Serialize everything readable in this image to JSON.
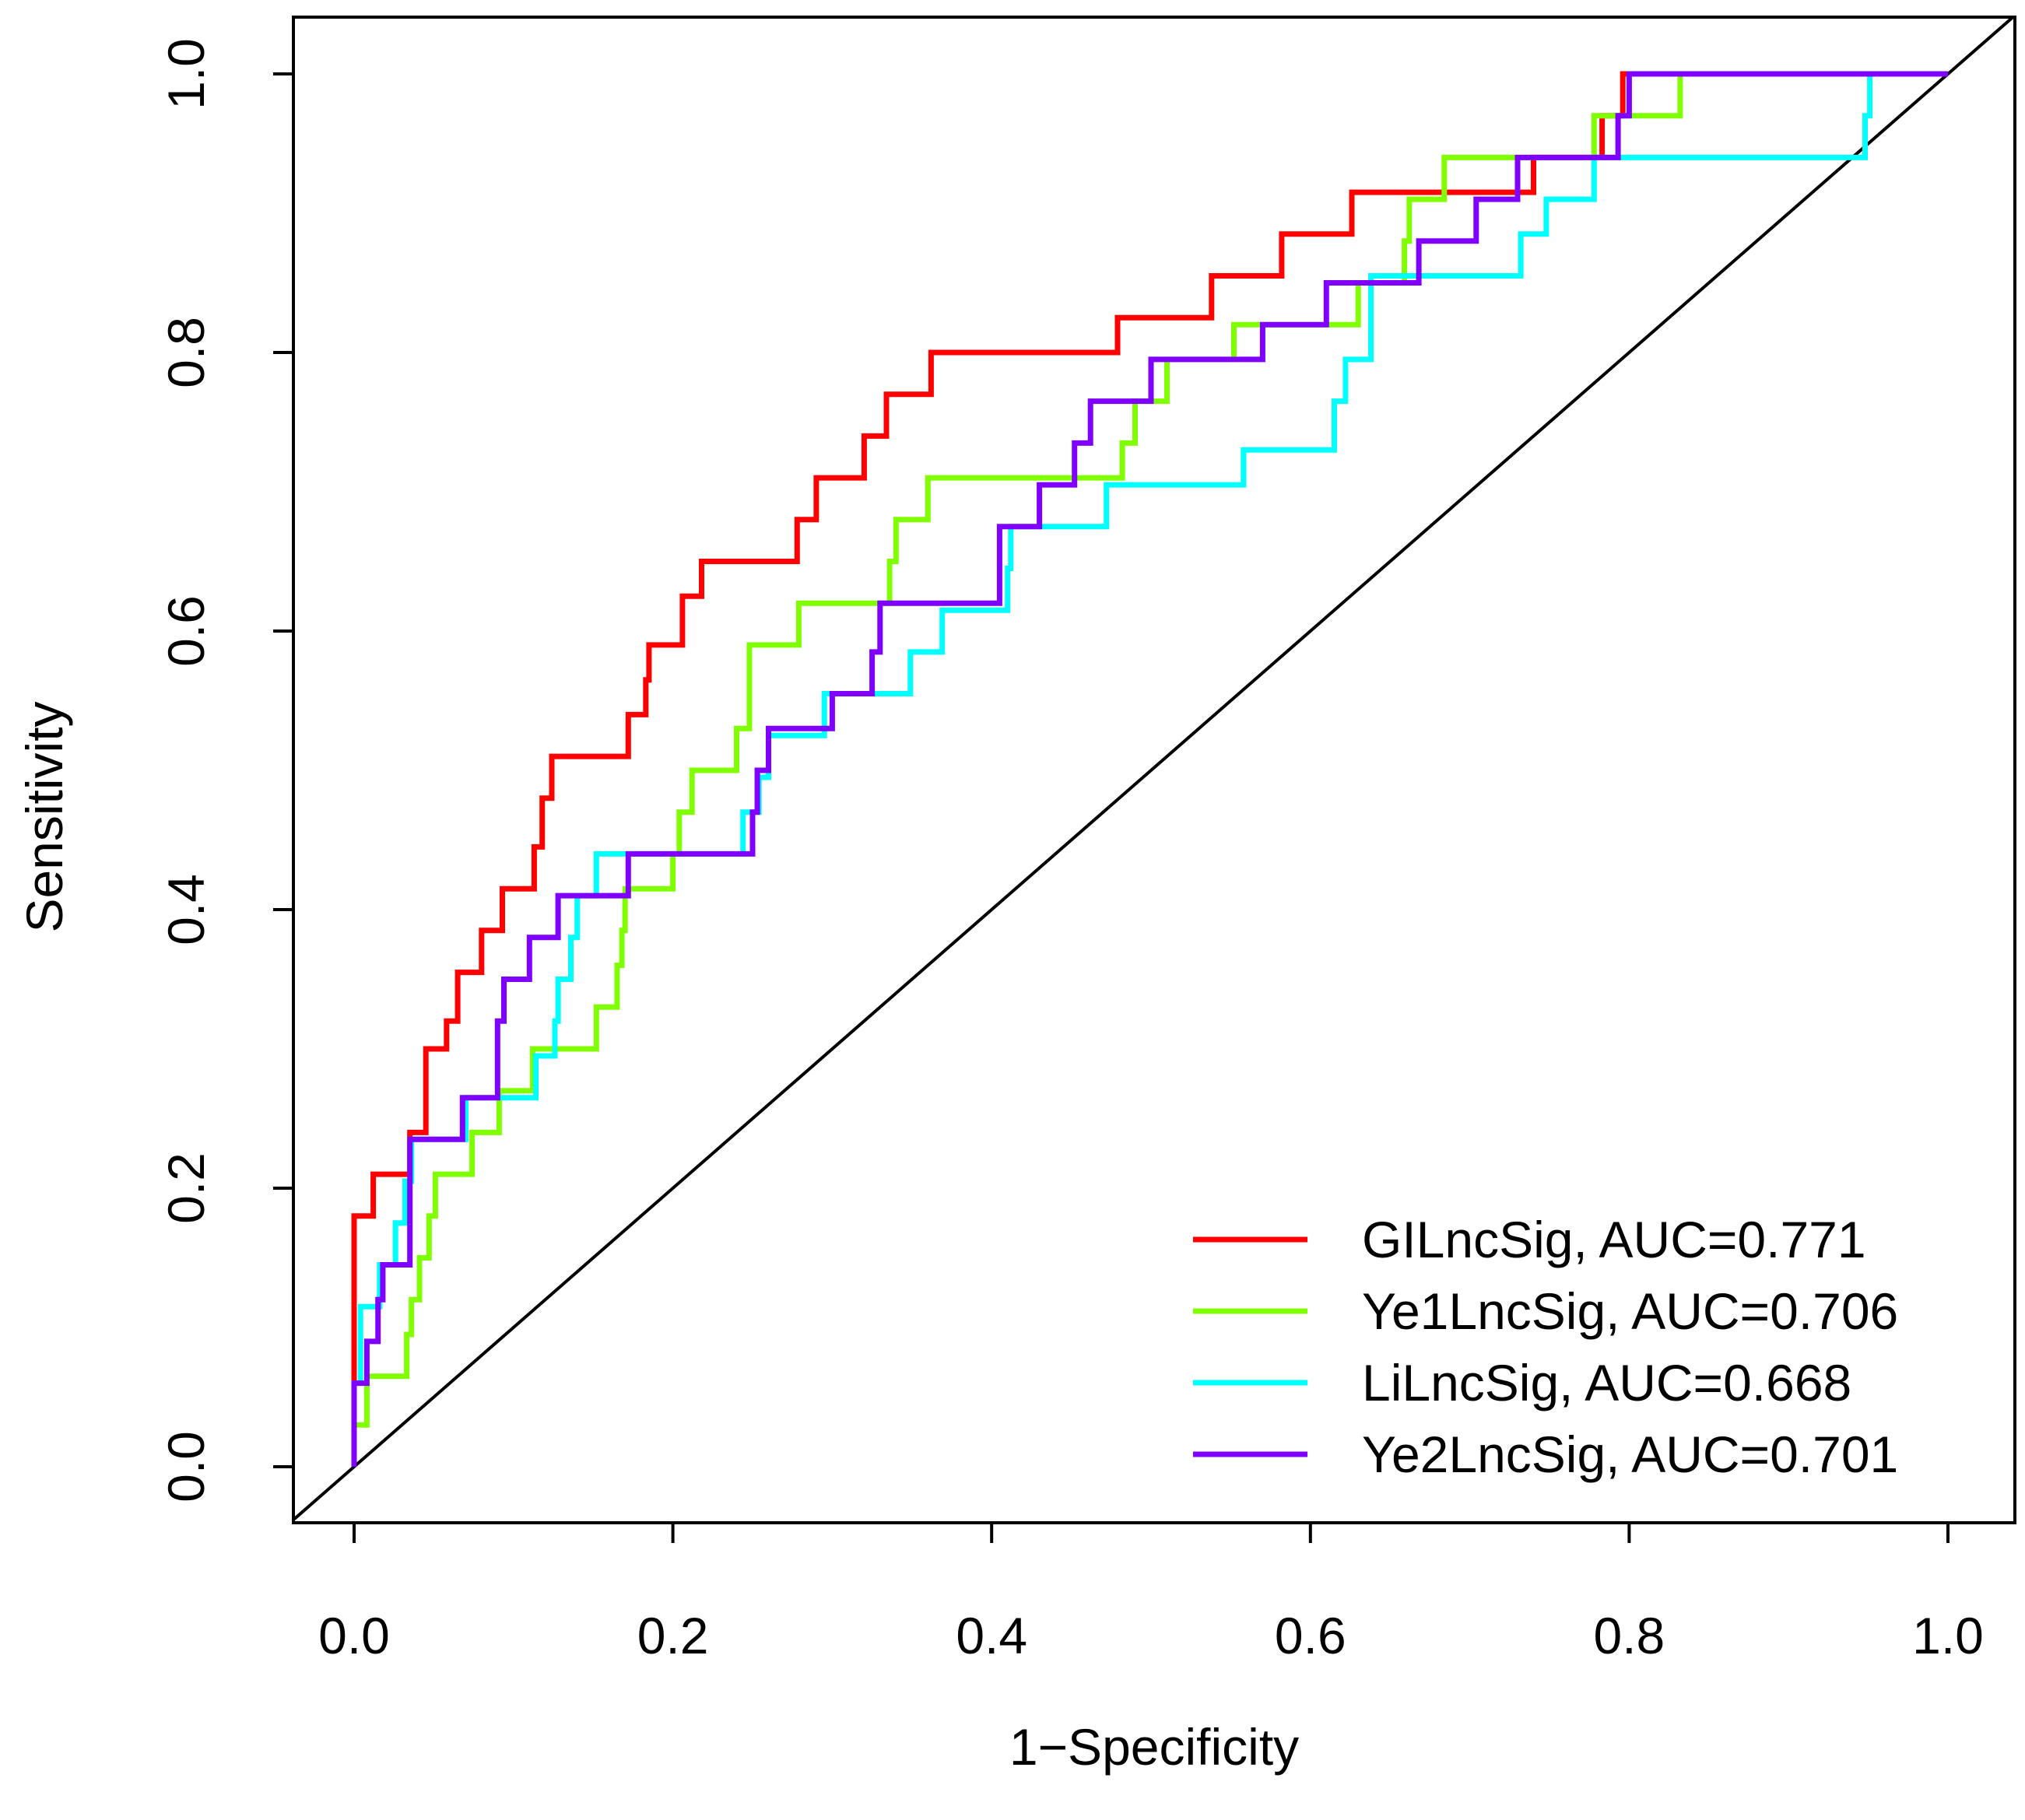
{
  "chart_data": {
    "type": "line",
    "title": "",
    "xlabel": "1−Specificity",
    "ylabel": "Sensitivity",
    "xlim": [
      0,
      1
    ],
    "ylim": [
      0,
      1
    ],
    "x_ticks": [
      "0.0",
      "0.2",
      "0.4",
      "0.6",
      "0.8",
      "1.0"
    ],
    "y_ticks": [
      "0.0",
      "0.2",
      "0.4",
      "0.6",
      "0.8",
      "1.0"
    ],
    "legend_position": "bottom-right",
    "reference_line": {
      "from": [
        0,
        0
      ],
      "to": [
        1,
        1
      ],
      "color": "#000000"
    },
    "series": [
      {
        "name": "GILncSig, AUC=0.771",
        "color": "#ff0000",
        "points": [
          [
            0,
            0
          ],
          [
            0,
            0.18
          ],
          [
            0.012,
            0.18
          ],
          [
            0.012,
            0.21
          ],
          [
            0.035,
            0.21
          ],
          [
            0.035,
            0.24
          ],
          [
            0.045,
            0.24
          ],
          [
            0.045,
            0.3
          ],
          [
            0.058,
            0.3
          ],
          [
            0.058,
            0.32
          ],
          [
            0.065,
            0.32
          ],
          [
            0.065,
            0.355
          ],
          [
            0.08,
            0.355
          ],
          [
            0.08,
            0.385
          ],
          [
            0.093,
            0.385
          ],
          [
            0.093,
            0.415
          ],
          [
            0.113,
            0.415
          ],
          [
            0.113,
            0.445
          ],
          [
            0.118,
            0.445
          ],
          [
            0.118,
            0.48
          ],
          [
            0.124,
            0.48
          ],
          [
            0.124,
            0.51
          ],
          [
            0.172,
            0.51
          ],
          [
            0.172,
            0.54
          ],
          [
            0.183,
            0.54
          ],
          [
            0.183,
            0.565
          ],
          [
            0.185,
            0.565
          ],
          [
            0.185,
            0.59
          ],
          [
            0.206,
            0.59
          ],
          [
            0.206,
            0.625
          ],
          [
            0.218,
            0.625
          ],
          [
            0.218,
            0.65
          ],
          [
            0.278,
            0.65
          ],
          [
            0.278,
            0.68
          ],
          [
            0.29,
            0.68
          ],
          [
            0.29,
            0.71
          ],
          [
            0.32,
            0.71
          ],
          [
            0.32,
            0.74
          ],
          [
            0.334,
            0.74
          ],
          [
            0.334,
            0.77
          ],
          [
            0.362,
            0.77
          ],
          [
            0.362,
            0.8
          ],
          [
            0.479,
            0.8
          ],
          [
            0.479,
            0.825
          ],
          [
            0.538,
            0.825
          ],
          [
            0.538,
            0.855
          ],
          [
            0.582,
            0.855
          ],
          [
            0.582,
            0.885
          ],
          [
            0.626,
            0.885
          ],
          [
            0.626,
            0.915
          ],
          [
            0.74,
            0.915
          ],
          [
            0.74,
            0.94
          ],
          [
            0.783,
            0.94
          ],
          [
            0.783,
            0.97
          ],
          [
            0.796,
            0.97
          ],
          [
            0.796,
            1.0
          ],
          [
            1.0,
            1.0
          ]
        ]
      },
      {
        "name": "Ye1LncSig, AUC=0.706",
        "color": "#80ff00",
        "points": [
          [
            0,
            0
          ],
          [
            0,
            0.03
          ],
          [
            0.008,
            0.03
          ],
          [
            0.008,
            0.065
          ],
          [
            0.033,
            0.065
          ],
          [
            0.033,
            0.095
          ],
          [
            0.036,
            0.095
          ],
          [
            0.036,
            0.12
          ],
          [
            0.041,
            0.12
          ],
          [
            0.041,
            0.15
          ],
          [
            0.047,
            0.15
          ],
          [
            0.047,
            0.18
          ],
          [
            0.051,
            0.18
          ],
          [
            0.051,
            0.21
          ],
          [
            0.074,
            0.21
          ],
          [
            0.074,
            0.24
          ],
          [
            0.091,
            0.24
          ],
          [
            0.091,
            0.27
          ],
          [
            0.112,
            0.27
          ],
          [
            0.112,
            0.3
          ],
          [
            0.152,
            0.3
          ],
          [
            0.152,
            0.33
          ],
          [
            0.165,
            0.33
          ],
          [
            0.165,
            0.36
          ],
          [
            0.168,
            0.36
          ],
          [
            0.168,
            0.385
          ],
          [
            0.17,
            0.385
          ],
          [
            0.17,
            0.415
          ],
          [
            0.2,
            0.415
          ],
          [
            0.2,
            0.44
          ],
          [
            0.204,
            0.44
          ],
          [
            0.204,
            0.47
          ],
          [
            0.212,
            0.47
          ],
          [
            0.212,
            0.5
          ],
          [
            0.24,
            0.5
          ],
          [
            0.24,
            0.53
          ],
          [
            0.248,
            0.53
          ],
          [
            0.248,
            0.59
          ],
          [
            0.279,
            0.59
          ],
          [
            0.279,
            0.62
          ],
          [
            0.336,
            0.62
          ],
          [
            0.336,
            0.65
          ],
          [
            0.34,
            0.65
          ],
          [
            0.34,
            0.68
          ],
          [
            0.36,
            0.68
          ],
          [
            0.36,
            0.71
          ],
          [
            0.482,
            0.71
          ],
          [
            0.482,
            0.735
          ],
          [
            0.49,
            0.735
          ],
          [
            0.49,
            0.765
          ],
          [
            0.51,
            0.765
          ],
          [
            0.51,
            0.795
          ],
          [
            0.552,
            0.795
          ],
          [
            0.552,
            0.82
          ],
          [
            0.63,
            0.82
          ],
          [
            0.63,
            0.85
          ],
          [
            0.659,
            0.85
          ],
          [
            0.659,
            0.88
          ],
          [
            0.662,
            0.88
          ],
          [
            0.662,
            0.91
          ],
          [
            0.684,
            0.91
          ],
          [
            0.684,
            0.94
          ],
          [
            0.778,
            0.94
          ],
          [
            0.778,
            0.97
          ],
          [
            0.8,
            0.97
          ],
          [
            0.8,
            0.97
          ],
          [
            0.832,
            0.97
          ],
          [
            0.832,
            1.0
          ],
          [
            1.0,
            1.0
          ]
        ]
      },
      {
        "name": "LiLncSig, AUC=0.668",
        "color": "#00ffff",
        "points": [
          [
            0,
            0
          ],
          [
            0,
            0.06
          ],
          [
            0.004,
            0.06
          ],
          [
            0.004,
            0.115
          ],
          [
            0.016,
            0.115
          ],
          [
            0.016,
            0.145
          ],
          [
            0.026,
            0.145
          ],
          [
            0.026,
            0.175
          ],
          [
            0.032,
            0.175
          ],
          [
            0.032,
            0.205
          ],
          [
            0.036,
            0.205
          ],
          [
            0.036,
            0.235
          ],
          [
            0.07,
            0.235
          ],
          [
            0.07,
            0.265
          ],
          [
            0.114,
            0.265
          ],
          [
            0.114,
            0.295
          ],
          [
            0.126,
            0.295
          ],
          [
            0.126,
            0.32
          ],
          [
            0.128,
            0.32
          ],
          [
            0.128,
            0.35
          ],
          [
            0.136,
            0.35
          ],
          [
            0.136,
            0.38
          ],
          [
            0.14,
            0.38
          ],
          [
            0.14,
            0.41
          ],
          [
            0.152,
            0.41
          ],
          [
            0.152,
            0.44
          ],
          [
            0.244,
            0.44
          ],
          [
            0.244,
            0.47
          ],
          [
            0.254,
            0.47
          ],
          [
            0.254,
            0.495
          ],
          [
            0.26,
            0.495
          ],
          [
            0.26,
            0.525
          ],
          [
            0.295,
            0.525
          ],
          [
            0.295,
            0.555
          ],
          [
            0.349,
            0.555
          ],
          [
            0.349,
            0.585
          ],
          [
            0.369,
            0.585
          ],
          [
            0.369,
            0.615
          ],
          [
            0.41,
            0.615
          ],
          [
            0.41,
            0.645
          ],
          [
            0.412,
            0.645
          ],
          [
            0.412,
            0.675
          ],
          [
            0.472,
            0.675
          ],
          [
            0.472,
            0.705
          ],
          [
            0.558,
            0.705
          ],
          [
            0.558,
            0.73
          ],
          [
            0.615,
            0.73
          ],
          [
            0.615,
            0.765
          ],
          [
            0.622,
            0.765
          ],
          [
            0.622,
            0.795
          ],
          [
            0.638,
            0.795
          ],
          [
            0.638,
            0.855
          ],
          [
            0.732,
            0.855
          ],
          [
            0.732,
            0.885
          ],
          [
            0.748,
            0.885
          ],
          [
            0.748,
            0.91
          ],
          [
            0.778,
            0.91
          ],
          [
            0.778,
            0.94
          ],
          [
            0.948,
            0.94
          ],
          [
            0.948,
            0.97
          ],
          [
            0.951,
            0.97
          ],
          [
            0.951,
            1.0
          ],
          [
            1.0,
            1.0
          ]
        ]
      },
      {
        "name": "Ye2LncSig, AUC=0.701",
        "color": "#8000ff",
        "points": [
          [
            0,
            0
          ],
          [
            0,
            0.06
          ],
          [
            0.008,
            0.06
          ],
          [
            0.008,
            0.09
          ],
          [
            0.015,
            0.09
          ],
          [
            0.015,
            0.12
          ],
          [
            0.018,
            0.12
          ],
          [
            0.018,
            0.145
          ],
          [
            0.035,
            0.145
          ],
          [
            0.035,
            0.175
          ],
          [
            0.035,
            0.175
          ],
          [
            0.035,
            0.205
          ],
          [
            0.035,
            0.205
          ],
          [
            0.035,
            0.235
          ],
          [
            0.068,
            0.235
          ],
          [
            0.068,
            0.265
          ],
          [
            0.09,
            0.265
          ],
          [
            0.09,
            0.32
          ],
          [
            0.094,
            0.32
          ],
          [
            0.094,
            0.35
          ],
          [
            0.11,
            0.35
          ],
          [
            0.11,
            0.38
          ],
          [
            0.128,
            0.38
          ],
          [
            0.128,
            0.41
          ],
          [
            0.172,
            0.41
          ],
          [
            0.172,
            0.44
          ],
          [
            0.25,
            0.44
          ],
          [
            0.25,
            0.47
          ],
          [
            0.253,
            0.47
          ],
          [
            0.253,
            0.5
          ],
          [
            0.26,
            0.5
          ],
          [
            0.26,
            0.53
          ],
          [
            0.3,
            0.53
          ],
          [
            0.3,
            0.555
          ],
          [
            0.325,
            0.555
          ],
          [
            0.325,
            0.585
          ],
          [
            0.33,
            0.585
          ],
          [
            0.33,
            0.62
          ],
          [
            0.405,
            0.62
          ],
          [
            0.405,
            0.675
          ],
          [
            0.43,
            0.675
          ],
          [
            0.43,
            0.705
          ],
          [
            0.452,
            0.705
          ],
          [
            0.452,
            0.735
          ],
          [
            0.462,
            0.735
          ],
          [
            0.462,
            0.765
          ],
          [
            0.5,
            0.765
          ],
          [
            0.5,
            0.795
          ],
          [
            0.57,
            0.795
          ],
          [
            0.57,
            0.82
          ],
          [
            0.61,
            0.82
          ],
          [
            0.61,
            0.85
          ],
          [
            0.668,
            0.85
          ],
          [
            0.668,
            0.88
          ],
          [
            0.704,
            0.88
          ],
          [
            0.704,
            0.91
          ],
          [
            0.73,
            0.91
          ],
          [
            0.73,
            0.94
          ],
          [
            0.793,
            0.94
          ],
          [
            0.793,
            0.97
          ],
          [
            0.8,
            0.97
          ],
          [
            0.8,
            1.0
          ],
          [
            1.0,
            1.0
          ]
        ]
      }
    ]
  }
}
